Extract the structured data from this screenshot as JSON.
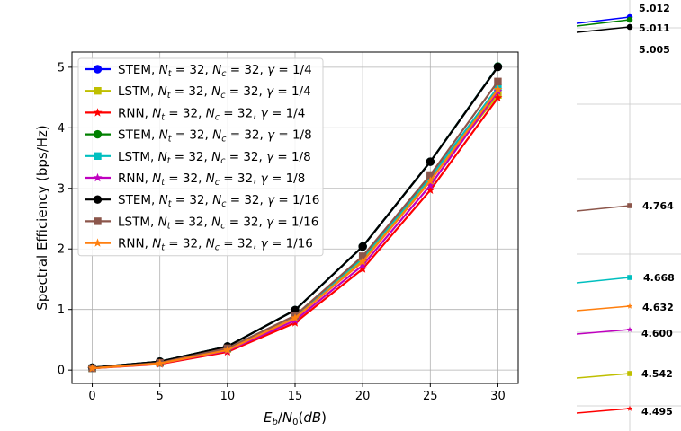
{
  "chart_data": {
    "type": "line",
    "title": "",
    "xlabel": "Eb/N0(dB)",
    "ylabel": "Spectral Efficiency (bps/Hz)",
    "x": [
      0,
      5,
      10,
      15,
      20,
      25,
      30
    ],
    "xlim": [
      -1.5,
      31.5
    ],
    "ylim": [
      -0.22,
      5.25
    ],
    "xticks": [
      0,
      5,
      10,
      15,
      20,
      25,
      30
    ],
    "yticks": [
      0,
      1,
      2,
      3,
      4,
      5
    ],
    "grid": true,
    "legend_position": "upper-left",
    "series": [
      {
        "name": "STEM, Nt = 32, Nc = 32, γ = 1/4",
        "color": "#0000ff",
        "marker": "circle",
        "values": [
          0.04,
          0.14,
          0.39,
          0.99,
          2.04,
          3.44,
          5.012
        ]
      },
      {
        "name": "LSTM, Nt = 32, Nc = 32, γ = 1/4",
        "color": "#bfbf00",
        "marker": "square",
        "values": [
          0.03,
          0.12,
          0.35,
          0.88,
          1.82,
          3.14,
          4.542
        ]
      },
      {
        "name": "RNN, Nt = 32, Nc = 32, γ = 1/4",
        "color": "#ff0000",
        "marker": "star",
        "values": [
          0.03,
          0.1,
          0.3,
          0.78,
          1.67,
          2.97,
          4.495
        ]
      },
      {
        "name": "STEM, Nt = 32, Nc = 32, γ = 1/8",
        "color": "#008000",
        "marker": "circle",
        "values": [
          0.04,
          0.14,
          0.39,
          0.99,
          2.04,
          3.44,
          5.011
        ]
      },
      {
        "name": "LSTM, Nt = 32, Nc = 32, γ = 1/8",
        "color": "#00bfbf",
        "marker": "square",
        "values": [
          0.03,
          0.12,
          0.36,
          0.89,
          1.85,
          3.18,
          4.668
        ]
      },
      {
        "name": "RNN, Nt = 32, Nc = 32, γ = 1/8",
        "color": "#bf00bf",
        "marker": "star",
        "values": [
          0.03,
          0.11,
          0.32,
          0.82,
          1.73,
          3.05,
          4.6
        ]
      },
      {
        "name": "STEM, Nt = 32, Nc = 32, γ = 1/16",
        "color": "#000000",
        "marker": "circle",
        "values": [
          0.04,
          0.14,
          0.39,
          0.99,
          2.04,
          3.44,
          5.005
        ]
      },
      {
        "name": "LSTM, Nt = 32, Nc = 32, γ = 1/16",
        "color": "#8c564b",
        "marker": "square",
        "values": [
          0.03,
          0.12,
          0.36,
          0.9,
          1.88,
          3.22,
          4.764
        ]
      },
      {
        "name": "RNN, Nt = 32, Nc = 32, γ = 1/16",
        "color": "#ff7f0e",
        "marker": "star",
        "values": [
          0.03,
          0.11,
          0.33,
          0.86,
          1.79,
          3.12,
          4.632
        ]
      }
    ],
    "inset": {
      "description": "zoomed end values at Eb/N0 = 30 dB",
      "labels": [
        "5.012",
        "5.011",
        "5.005",
        "4.764",
        "4.668",
        "4.632",
        "4.600",
        "4.542",
        "4.495"
      ]
    }
  }
}
